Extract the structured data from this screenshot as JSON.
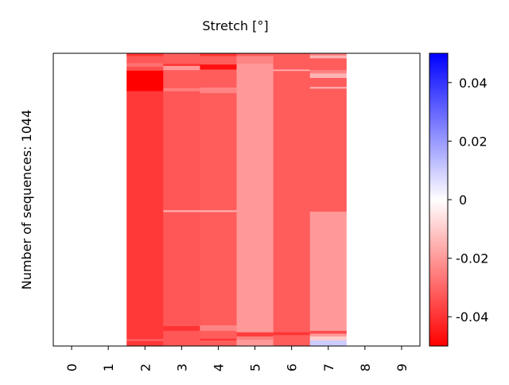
{
  "chart_data": {
    "type": "heatmap",
    "title": "Stretch [°]",
    "ylabel": "Number of sequences: 1044",
    "xlabel": "",
    "x_categories": [
      "0",
      "1",
      "2",
      "3",
      "4",
      "5",
      "6",
      "7",
      "8",
      "9"
    ],
    "row_count": 1044,
    "colorscale": {
      "name": "bwr",
      "min": -0.05,
      "max": 0.05,
      "low_color": "#ff0000",
      "mid_color": "#ffffff",
      "high_color": "#0000ff",
      "ticks": [
        0.04,
        0.02,
        0,
        -0.02,
        -0.04
      ],
      "tick_labels": [
        "0.04",
        "0.02",
        "0",
        "-0.02",
        "-0.04"
      ]
    },
    "columns": [
      {
        "x": "0",
        "segments": [
          {
            "from": 0,
            "to": 1044,
            "value": 0
          }
        ]
      },
      {
        "x": "1",
        "segments": [
          {
            "from": 0,
            "to": 1044,
            "value": 0
          }
        ]
      },
      {
        "x": "2",
        "segments": [
          {
            "from": 0,
            "to": 10,
            "value": -0.04
          },
          {
            "from": 10,
            "to": 35,
            "value": -0.033
          },
          {
            "from": 35,
            "to": 48,
            "value": -0.028
          },
          {
            "from": 48,
            "to": 62,
            "value": -0.035
          },
          {
            "from": 62,
            "to": 135,
            "value": -0.05
          },
          {
            "from": 135,
            "to": 1020,
            "value": -0.039
          },
          {
            "from": 1020,
            "to": 1026,
            "value": -0.03
          },
          {
            "from": 1026,
            "to": 1044,
            "value": -0.039
          }
        ]
      },
      {
        "x": "3",
        "segments": [
          {
            "from": 0,
            "to": 38,
            "value": -0.032
          },
          {
            "from": 38,
            "to": 45,
            "value": -0.04
          },
          {
            "from": 45,
            "to": 60,
            "value": -0.02
          },
          {
            "from": 60,
            "to": 125,
            "value": -0.032
          },
          {
            "from": 125,
            "to": 135,
            "value": -0.025
          },
          {
            "from": 135,
            "to": 560,
            "value": -0.033
          },
          {
            "from": 560,
            "to": 566,
            "value": -0.015
          },
          {
            "from": 566,
            "to": 973,
            "value": -0.033
          },
          {
            "from": 973,
            "to": 990,
            "value": -0.04
          },
          {
            "from": 990,
            "to": 1044,
            "value": -0.033
          }
        ]
      },
      {
        "x": "4",
        "segments": [
          {
            "from": 0,
            "to": 10,
            "value": -0.04
          },
          {
            "from": 10,
            "to": 40,
            "value": -0.032
          },
          {
            "from": 40,
            "to": 58,
            "value": -0.047
          },
          {
            "from": 58,
            "to": 122,
            "value": -0.032
          },
          {
            "from": 122,
            "to": 142,
            "value": -0.024
          },
          {
            "from": 142,
            "to": 560,
            "value": -0.032
          },
          {
            "from": 560,
            "to": 566,
            "value": -0.015
          },
          {
            "from": 566,
            "to": 970,
            "value": -0.032
          },
          {
            "from": 970,
            "to": 990,
            "value": -0.024
          },
          {
            "from": 990,
            "to": 1018,
            "value": -0.032
          },
          {
            "from": 1018,
            "to": 1024,
            "value": -0.04
          },
          {
            "from": 1024,
            "to": 1044,
            "value": -0.032
          }
        ]
      },
      {
        "x": "5",
        "segments": [
          {
            "from": 0,
            "to": 10,
            "value": -0.032
          },
          {
            "from": 10,
            "to": 38,
            "value": -0.024
          },
          {
            "from": 38,
            "to": 995,
            "value": -0.02
          },
          {
            "from": 995,
            "to": 1010,
            "value": -0.038
          },
          {
            "from": 1010,
            "to": 1022,
            "value": -0.025
          },
          {
            "from": 1022,
            "to": 1044,
            "value": -0.02
          }
        ]
      },
      {
        "x": "6",
        "segments": [
          {
            "from": 0,
            "to": 58,
            "value": -0.032
          },
          {
            "from": 58,
            "to": 63,
            "value": -0.015
          },
          {
            "from": 63,
            "to": 995,
            "value": -0.032
          },
          {
            "from": 995,
            "to": 1005,
            "value": -0.04
          },
          {
            "from": 1005,
            "to": 1044,
            "value": -0.032
          }
        ]
      },
      {
        "x": "7",
        "segments": [
          {
            "from": 0,
            "to": 8,
            "value": -0.025
          },
          {
            "from": 8,
            "to": 18,
            "value": -0.015
          },
          {
            "from": 18,
            "to": 60,
            "value": -0.032
          },
          {
            "from": 60,
            "to": 72,
            "value": -0.025
          },
          {
            "from": 72,
            "to": 88,
            "value": -0.015
          },
          {
            "from": 88,
            "to": 120,
            "value": -0.032
          },
          {
            "from": 120,
            "to": 126,
            "value": -0.015
          },
          {
            "from": 126,
            "to": 565,
            "value": -0.032
          },
          {
            "from": 565,
            "to": 990,
            "value": -0.02
          },
          {
            "from": 990,
            "to": 1000,
            "value": -0.035
          },
          {
            "from": 1000,
            "to": 1010,
            "value": -0.02
          },
          {
            "from": 1010,
            "to": 1024,
            "value": -0.01
          },
          {
            "from": 1024,
            "to": 1044,
            "value": 0.01
          }
        ]
      },
      {
        "x": "8",
        "segments": [
          {
            "from": 0,
            "to": 1044,
            "value": 0
          }
        ]
      },
      {
        "x": "9",
        "segments": [
          {
            "from": 0,
            "to": 1044,
            "value": 0
          }
        ]
      }
    ]
  }
}
